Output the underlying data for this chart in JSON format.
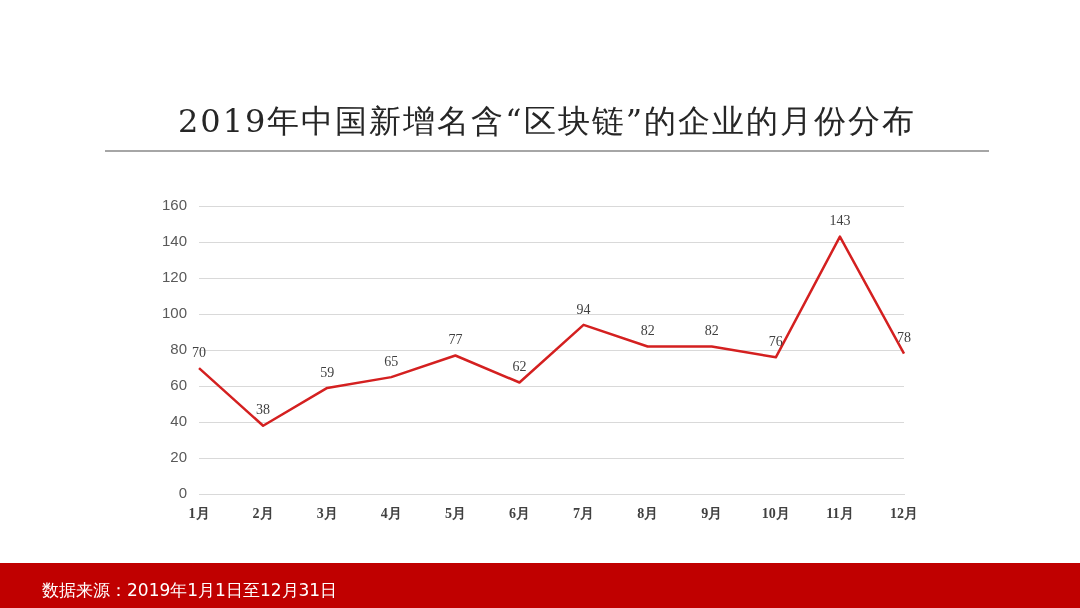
{
  "chart_data": {
    "type": "line",
    "title": "2019年中国新增名含“区块链”的企业的月份分布",
    "categories": [
      "1月",
      "2月",
      "3月",
      "4月",
      "5月",
      "6月",
      "7月",
      "8月",
      "9月",
      "10月",
      "11月",
      "12月"
    ],
    "series": [
      {
        "color": "#d42020",
        "values": [
          70,
          38,
          59,
          65,
          77,
          62,
          94,
          82,
          82,
          76,
          143,
          78
        ]
      }
    ],
    "ylim": [
      0,
      160
    ],
    "yticks": [
      0,
      20,
      40,
      60,
      80,
      100,
      120,
      140,
      160
    ],
    "grid": "y",
    "legend": false,
    "marker": "none",
    "line_style": "solid",
    "data_labels": true,
    "annotations": [
      "数据来源：2019年1月1日至12月31日"
    ]
  }
}
